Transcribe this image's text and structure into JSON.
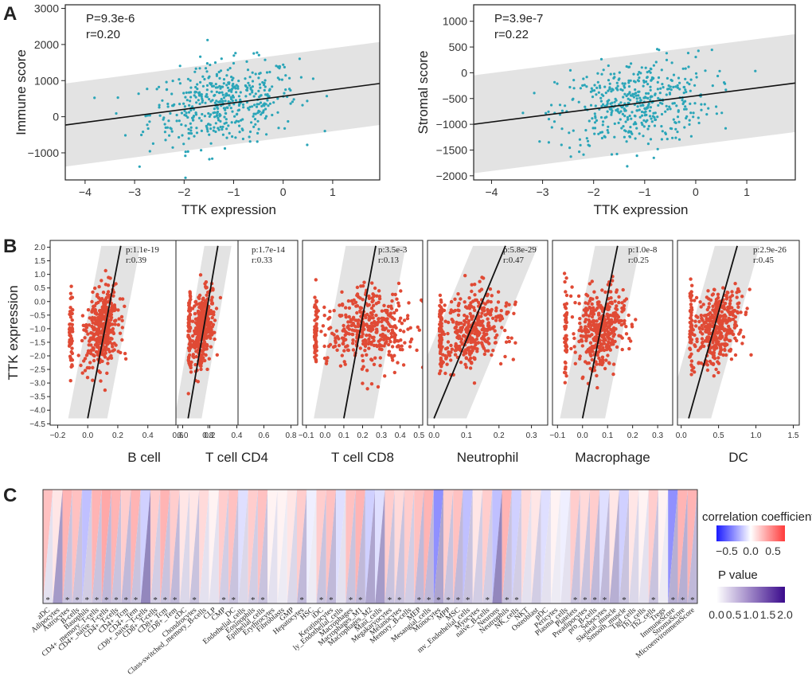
{
  "panels": {
    "a": "A",
    "b": "B",
    "c": "C"
  },
  "chart_data": [
    {
      "type": "scatter",
      "id": "immune",
      "annotation": [
        "P=9.3e-6",
        "r=0.20"
      ],
      "xlabel": "TTK expression",
      "ylabel": "Immune score",
      "xlim": [
        -4.4,
        1.95
      ],
      "ylim": [
        -1750,
        3100
      ],
      "xticks": [
        -4,
        -3,
        -2,
        -1,
        0,
        1
      ],
      "yticks": [
        -1000,
        0,
        1000,
        2000,
        3000
      ],
      "fit": {
        "x0": -4.4,
        "y0": -230,
        "x1": 1.95,
        "y1": 920
      },
      "band": {
        "halfwidth": 1150
      },
      "color": "#2aa5b8",
      "n_points": 470,
      "x_center": -1.2,
      "x_sd": 0.75,
      "resid_sd": 560
    },
    {
      "type": "scatter",
      "id": "stromal",
      "annotation": [
        "P=3.9e-7",
        "r=0.22"
      ],
      "xlabel": "TTK expression",
      "ylabel": "Stromal score",
      "xlim": [
        -4.35,
        1.95
      ],
      "ylim": [
        -2080,
        1320
      ],
      "xticks": [
        -4,
        -3,
        -2,
        -1,
        0,
        1
      ],
      "yticks": [
        -2000,
        -1500,
        -1000,
        -500,
        0,
        500,
        1000
      ],
      "fit": {
        "x0": -4.35,
        "y0": -1000,
        "x1": 1.95,
        "y1": -200
      },
      "band": {
        "halfwidth": 950
      },
      "color": "#2aa5b8",
      "n_points": 470,
      "x_center": -1.2,
      "x_sd": 0.75,
      "resid_sd": 420
    },
    {
      "type": "scatter",
      "id": "timer",
      "ylabel": "TTK expression",
      "ylim": [
        -4.55,
        2.25
      ],
      "yticks": [
        2.0,
        1.5,
        1.0,
        0.5,
        0.0,
        -0.5,
        -1.0,
        -1.5,
        -2.0,
        -2.5,
        -3.0,
        -3.5,
        -4.0,
        -4.5
      ],
      "ytick_labels": [
        "2.0",
        "1.5",
        "1.0",
        "0.5",
        "0.0",
        "-0.5",
        "-1.0",
        "-1.5",
        "-2.0",
        "-2.5",
        "-3.0",
        "-3.5",
        "-4.0",
        "-4.5"
      ],
      "color": "#e04a35",
      "panels": [
        {
          "name": "B cell",
          "p": "p:1.1e-19",
          "r": "r:0.39",
          "xlim": [
            -0.25,
            1.0
          ],
          "xticks": [
            -0.2,
            0.0,
            0.2,
            0.4,
            0.6,
            0.8
          ],
          "xcenter": 0.08,
          "xsd": 0.05,
          "fit": [
            0.0,
            -4.3,
            0.22,
            2.05
          ],
          "bandw": 0.13
        },
        {
          "name": "T cell CD4",
          "p": "p:1.7e-14",
          "r": "r:0.33",
          "xlim": [
            -0.05,
            0.85
          ],
          "xticks": [
            0.0,
            0.2,
            0.4,
            0.6,
            0.8
          ],
          "xcenter": 0.1,
          "xsd": 0.04,
          "fit": [
            0.04,
            -4.3,
            0.26,
            2.05
          ],
          "bandw": 0.1
        },
        {
          "name": "T cell CD8",
          "p": "p:3.5e-3",
          "r": "r:0.13",
          "xlim": [
            -0.12,
            0.52
          ],
          "xticks": [
            -0.1,
            0.0,
            0.1,
            0.2,
            0.3,
            0.4,
            0.5
          ],
          "xcenter": 0.18,
          "xsd": 0.11,
          "fit": [
            0.1,
            -4.3,
            0.27,
            2.05
          ],
          "bandw": 0.16
        },
        {
          "name": "Neutrophil",
          "p": "p:5.8e-29",
          "r": "r:0.47",
          "xlim": [
            -0.02,
            0.35
          ],
          "xticks": [
            0.0,
            0.1,
            0.2,
            0.3
          ],
          "xcenter": 0.12,
          "xsd": 0.05,
          "fit": [
            0.0,
            -4.3,
            0.22,
            2.05
          ],
          "bandw": 0.1
        },
        {
          "name": "Macrophage",
          "p": "p:1.0e-8",
          "r": "r:0.25",
          "xlim": [
            -0.12,
            0.36
          ],
          "xticks": [
            -0.1,
            0.0,
            0.1,
            0.2,
            0.3
          ],
          "xcenter": 0.06,
          "xsd": 0.05,
          "fit": [
            0.0,
            -4.3,
            0.14,
            2.05
          ],
          "bandw": 0.09
        },
        {
          "name": "DC",
          "p": "p:2.9e-26",
          "r": "r:0.45",
          "xlim": [
            -0.05,
            1.58
          ],
          "xticks": [
            0.0,
            0.5,
            1.0,
            1.5
          ],
          "xcenter": 0.45,
          "xsd": 0.16,
          "fit": [
            0.1,
            -4.3,
            0.75,
            2.05
          ],
          "bandw": 0.3
        }
      ]
    },
    {
      "type": "heatmap",
      "id": "xcell",
      "legend_title": "correlation coefficient",
      "legend_ticks": [
        "-0.5",
        "0.0",
        "0.5"
      ],
      "p_title": "P value",
      "p_ticks": [
        "0.0",
        "0.5",
        "1.0",
        "1.5",
        "2.0"
      ],
      "cells": [
        {
          "n": "aDC",
          "c": 0.25,
          "p": 0.3,
          "s": 1
        },
        {
          "n": "Adipocytes",
          "c": 0.1,
          "p": 1.0,
          "s": 0
        },
        {
          "n": "Astrocytes",
          "c": 0.3,
          "p": 0.6,
          "s": 1
        },
        {
          "n": "B-cells",
          "c": 0.25,
          "p": 0.6,
          "s": 1
        },
        {
          "n": "Basophils",
          "c": -0.2,
          "p": 0.5,
          "s": 1
        },
        {
          "n": "CD4+_memory_T-cells",
          "c": 0.3,
          "p": 0.6,
          "s": 1
        },
        {
          "n": "CD4+_naive_T-cells",
          "c": 0.35,
          "p": 0.7,
          "s": 1
        },
        {
          "n": "CD4+_T-cells",
          "c": 0.3,
          "p": 0.6,
          "s": 1
        },
        {
          "n": "CD4+_Tcm",
          "c": 0.2,
          "p": 0.7,
          "s": 1
        },
        {
          "n": "CD4+_Tem",
          "c": 0.3,
          "p": 0.6,
          "s": 1
        },
        {
          "n": "CD8+_naive_T-cells",
          "c": -0.15,
          "p": 1.2,
          "s": 0
        },
        {
          "n": "CD8+_T-cells",
          "c": 0.2,
          "p": 0.5,
          "s": 1
        },
        {
          "n": "CD8+_Tcm",
          "c": 0.3,
          "p": 0.6,
          "s": 1
        },
        {
          "n": "CD8+_Tem",
          "c": 0.2,
          "p": 0.7,
          "s": 1
        },
        {
          "n": "cDC",
          "c": 0.1,
          "p": 0.4,
          "s": 0
        },
        {
          "n": "Chondrocytes",
          "c": 0.1,
          "p": 0.6,
          "s": 1
        },
        {
          "n": "Class-switched_memory_B-cells",
          "c": 0.15,
          "p": 0.3,
          "s": 0
        },
        {
          "n": "CLP",
          "c": 0.05,
          "p": 0.3,
          "s": 0
        },
        {
          "n": "CMP",
          "c": 0.2,
          "p": 0.5,
          "s": 1
        },
        {
          "n": "DC",
          "c": 0.25,
          "p": 0.6,
          "s": 1
        },
        {
          "n": "Endothelial_cells",
          "c": -0.1,
          "p": 0.4,
          "s": 0
        },
        {
          "n": "Eosinophils",
          "c": 0.2,
          "p": 0.5,
          "s": 1
        },
        {
          "n": "Epithelial_cells",
          "c": 0.25,
          "p": 0.6,
          "s": 1
        },
        {
          "n": "Erythrocytes",
          "c": 0.05,
          "p": 0.3,
          "s": 0
        },
        {
          "n": "Fibroblasts",
          "c": 0.05,
          "p": 0.2,
          "s": 0
        },
        {
          "n": "GMP",
          "c": 0.1,
          "p": 0.4,
          "s": 0
        },
        {
          "n": "Hepatocytes",
          "c": 0.2,
          "p": 0.7,
          "s": 1
        },
        {
          "n": "HSC",
          "c": -0.05,
          "p": 0.2,
          "s": 0
        },
        {
          "n": "iDC",
          "c": 0.2,
          "p": 0.6,
          "s": 1
        },
        {
          "n": "Keratinocytes",
          "c": 0.25,
          "p": 0.7,
          "s": 1
        },
        {
          "n": "ly_Endothelial_cells",
          "c": -0.1,
          "p": 0.3,
          "s": 0
        },
        {
          "n": "Macrophages",
          "c": 0.25,
          "p": 0.6,
          "s": 1
        },
        {
          "n": "Macrophages_M1",
          "c": 0.3,
          "p": 0.7,
          "s": 1
        },
        {
          "n": "Macrophages_M2",
          "c": -0.15,
          "p": 0.9,
          "s": 0
        },
        {
          "n": "Mast_cells",
          "c": -0.1,
          "p": 1.0,
          "s": 0
        },
        {
          "n": "Megakaryocytes",
          "c": 0.2,
          "p": 0.6,
          "s": 1
        },
        {
          "n": "Melanocytes",
          "c": 0.15,
          "p": 0.6,
          "s": 1
        },
        {
          "n": "Memory_B-cells",
          "c": 0.2,
          "p": 0.5,
          "s": 0
        },
        {
          "n": "MEP",
          "c": 0.25,
          "p": 0.7,
          "s": 1
        },
        {
          "n": "Mesangial_cells",
          "c": 0.3,
          "p": 0.7,
          "s": 1
        },
        {
          "n": "Monocytes",
          "c": -0.35,
          "p": 0.9,
          "s": 1
        },
        {
          "n": "MPP",
          "c": 0.2,
          "p": 0.6,
          "s": 1
        },
        {
          "n": "MSC",
          "c": 0.25,
          "p": 0.7,
          "s": 1
        },
        {
          "n": "mv_Endothelial_cells",
          "c": -0.2,
          "p": 0.6,
          "s": 1
        },
        {
          "n": "Myocytes",
          "c": 0.1,
          "p": 0.5,
          "s": 0
        },
        {
          "n": "naive_B-cells",
          "c": 0.2,
          "p": 0.5,
          "s": 1
        },
        {
          "n": "Neurons",
          "c": -0.2,
          "p": 1.2,
          "s": 0
        },
        {
          "n": "Neutrophils",
          "c": 0.3,
          "p": 0.6,
          "s": 1
        },
        {
          "n": "NK_cells",
          "c": -0.15,
          "p": 0.5,
          "s": 1
        },
        {
          "n": "NKT",
          "c": 0.15,
          "p": 0.3,
          "s": 0
        },
        {
          "n": "Osteoblast",
          "c": 0.1,
          "p": 0.5,
          "s": 0
        },
        {
          "n": "pDC",
          "c": -0.1,
          "p": 0.3,
          "s": 0
        },
        {
          "n": "Pericytes",
          "c": 0.05,
          "p": 0.2,
          "s": 0
        },
        {
          "n": "Plasma_cells",
          "c": -0.05,
          "p": 0.3,
          "s": 0
        },
        {
          "n": "Platelets",
          "c": 0.2,
          "p": 0.6,
          "s": 1
        },
        {
          "n": "Preadipocytes",
          "c": 0.15,
          "p": 0.6,
          "s": 1
        },
        {
          "n": "pro_B-cells",
          "c": 0.2,
          "p": 0.7,
          "s": 1
        },
        {
          "n": "Sebocytes",
          "c": -0.1,
          "p": 0.7,
          "s": 1
        },
        {
          "n": "Skeletal_muscle",
          "c": 0.1,
          "p": 0.8,
          "s": 0
        },
        {
          "n": "Smooth_muscle",
          "c": -0.15,
          "p": 0.6,
          "s": 1
        },
        {
          "n": "Tgd_cells",
          "c": 0.1,
          "p": 0.4,
          "s": 0
        },
        {
          "n": "Th1_cells",
          "c": 0.05,
          "p": 0.3,
          "s": 0
        },
        {
          "n": "Th2_cells",
          "c": 0.2,
          "p": 0.6,
          "s": 1
        },
        {
          "n": "Tregs",
          "c": 0.05,
          "p": 0.2,
          "s": 0
        },
        {
          "n": "ImmuneScore",
          "c": -0.35,
          "p": 0.8,
          "s": 1
        },
        {
          "n": "StromaScore",
          "c": 0.3,
          "p": 0.8,
          "s": 1
        },
        {
          "n": "MicroenvironmentScore",
          "c": 0.3,
          "p": 0.7,
          "s": 1
        }
      ]
    }
  ]
}
